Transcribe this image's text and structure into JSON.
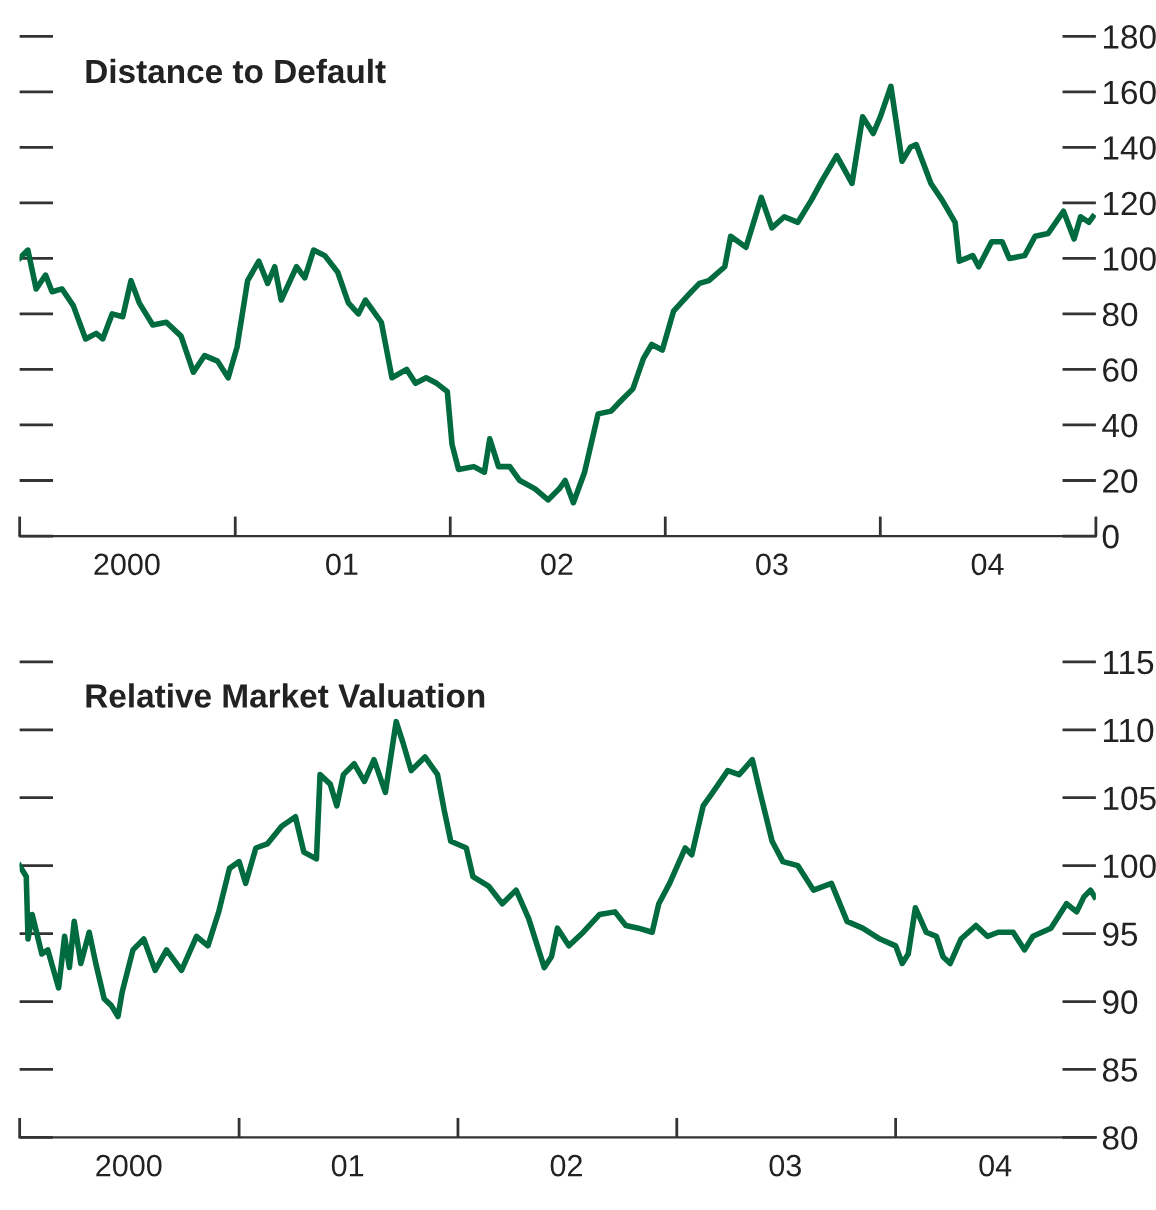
{
  "chart_data": [
    {
      "type": "line",
      "title": "Distance to Default",
      "color": "#006b3f",
      "x": [
        "2000-01-01",
        "2000-01-15",
        "2000-01-29",
        "2000-02-14",
        "2000-02-25",
        "2000-03-13",
        "2000-04-01",
        "2000-04-22",
        "2000-05-10",
        "2000-05-21",
        "2000-06-06",
        "2000-06-24",
        "2000-07-08",
        "2000-07-22",
        "2000-08-14",
        "2000-09-06",
        "2000-10-01",
        "2000-10-22",
        "2000-11-10",
        "2000-12-02",
        "2000-12-20",
        "2001-01-04",
        "2001-01-22",
        "2001-02-10",
        "2001-02-25",
        "2001-03-09",
        "2001-03-20",
        "2001-04-15",
        "2001-04-29",
        "2001-05-14",
        "2001-06-02",
        "2001-06-24",
        "2001-07-12",
        "2001-07-29",
        "2001-08-10",
        "2001-09-06",
        "2001-09-24",
        "2001-10-19",
        "2001-11-03",
        "2001-11-21",
        "2001-12-09",
        "2001-12-27",
        "2002-01-04",
        "2002-01-15",
        "2002-02-10",
        "2002-02-28",
        "2002-03-09",
        "2002-03-24",
        "2002-04-12",
        "2002-04-29",
        "2002-05-25",
        "2002-06-16",
        "2002-07-05",
        "2002-07-15",
        "2002-07-29",
        "2002-08-17",
        "2002-09-09",
        "2002-10-01",
        "2002-10-19",
        "2002-11-07",
        "2002-11-25",
        "2002-12-09",
        "2002-12-27",
        "2003-01-15",
        "2003-02-10",
        "2003-02-28",
        "2003-03-16",
        "2003-04-12",
        "2003-04-22",
        "2003-05-18",
        "2003-06-13",
        "2003-07-01",
        "2003-07-22",
        "2003-08-14",
        "2003-09-06",
        "2003-09-24",
        "2003-10-19",
        "2003-11-14",
        "2003-12-02",
        "2003-12-20",
        "2004-01-01",
        "2004-01-19",
        "2004-02-07",
        "2004-02-21",
        "2004-03-02",
        "2004-03-27",
        "2004-04-15",
        "2004-05-07",
        "2004-05-14",
        "2004-06-06",
        "2004-06-16",
        "2004-07-08",
        "2004-07-26",
        "2004-08-07",
        "2004-09-02",
        "2004-09-20",
        "2004-10-12",
        "2004-11-07",
        "2004-11-25",
        "2004-12-06",
        "2004-12-20",
        "2004-12-27"
      ],
      "values": [
        100,
        103,
        89,
        94,
        88,
        89,
        83,
        71,
        73,
        71,
        80,
        79,
        92,
        84,
        76,
        77,
        72,
        59,
        65,
        63,
        57,
        68,
        92,
        99,
        91,
        97,
        85,
        97,
        93,
        103,
        101,
        95,
        84,
        80,
        85,
        77,
        57,
        60,
        55,
        57,
        55,
        52,
        33,
        24,
        25,
        23,
        35,
        25,
        25,
        20,
        17,
        13,
        17,
        20,
        12,
        23,
        44,
        45,
        49,
        53,
        64,
        69,
        67,
        81,
        87,
        91,
        92,
        97,
        108,
        104,
        122,
        111,
        115,
        113,
        121,
        128,
        137,
        127,
        151,
        145,
        151,
        162,
        135,
        140,
        141,
        127,
        121,
        113,
        99,
        101,
        97,
        106,
        106,
        100,
        101,
        108,
        109,
        117,
        107,
        115,
        113,
        115
      ],
      "xlim": [
        "2000-01-01",
        "2005-01-01"
      ],
      "xticks": [
        {
          "value": "2000-01-01",
          "label": null
        },
        {
          "value": "2000-07-01",
          "label": "2000"
        },
        {
          "value": "2001-01-01",
          "label": null
        },
        {
          "value": "2001-07-01",
          "label": "01"
        },
        {
          "value": "2002-01-01",
          "label": null
        },
        {
          "value": "2002-07-01",
          "label": "02"
        },
        {
          "value": "2003-01-01",
          "label": null
        },
        {
          "value": "2003-07-01",
          "label": "03"
        },
        {
          "value": "2004-01-01",
          "label": null
        },
        {
          "value": "2004-07-01",
          "label": "04"
        },
        {
          "value": "2005-01-01",
          "label": null
        }
      ],
      "ylim": [
        0,
        180
      ],
      "yticks": [
        0,
        20,
        40,
        60,
        80,
        100,
        120,
        140,
        160,
        180
      ],
      "grid": false,
      "legend": false
    },
    {
      "type": "line",
      "title": "Relative Market Valuation",
      "color": "#006b3f",
      "x": [
        "2000-01-01",
        "2000-01-12",
        "2000-01-15",
        "2000-01-22",
        "2000-02-07",
        "2000-02-17",
        "2000-03-06",
        "2000-03-16",
        "2000-03-24",
        "2000-04-01",
        "2000-04-12",
        "2000-04-26",
        "2000-05-07",
        "2000-05-21",
        "2000-06-02",
        "2000-06-13",
        "2000-06-20",
        "2000-07-08",
        "2000-07-26",
        "2000-08-14",
        "2000-09-02",
        "2000-09-27",
        "2000-10-22",
        "2000-11-10",
        "2000-11-28",
        "2000-12-16",
        "2001-01-01",
        "2001-01-12",
        "2001-01-29",
        "2001-02-17",
        "2001-03-13",
        "2001-04-05",
        "2001-04-19",
        "2001-05-10",
        "2001-05-16",
        "2001-06-02",
        "2001-06-13",
        "2001-06-24",
        "2001-07-12",
        "2001-07-29",
        "2001-08-14",
        "2001-09-02",
        "2001-09-20",
        "2001-10-01",
        "2001-10-15",
        "2001-11-07",
        "2001-11-28",
        "2001-12-09",
        "2001-12-20",
        "2002-01-15",
        "2002-01-26",
        "2002-02-21",
        "2002-03-16",
        "2002-04-08",
        "2002-04-29",
        "2002-05-25",
        "2002-06-06",
        "2002-06-16",
        "2002-07-05",
        "2002-07-29",
        "2002-08-25",
        "2002-09-20",
        "2002-10-08",
        "2002-10-29",
        "2002-11-21",
        "2002-12-02",
        "2002-12-20",
        "2003-01-15",
        "2003-01-26",
        "2003-02-14",
        "2003-03-02",
        "2003-03-27",
        "2003-04-15",
        "2003-05-07",
        "2003-05-21",
        "2003-06-09",
        "2003-06-27",
        "2003-07-22",
        "2003-08-17",
        "2003-09-16",
        "2003-10-12",
        "2003-11-07",
        "2003-12-06",
        "2004-01-01",
        "2004-01-12",
        "2004-01-22",
        "2004-02-03",
        "2004-02-21",
        "2004-03-09",
        "2004-03-20",
        "2004-04-01",
        "2004-04-19",
        "2004-05-14",
        "2004-06-02",
        "2004-06-20",
        "2004-07-15",
        "2004-08-03",
        "2004-08-17",
        "2004-09-16",
        "2004-10-12",
        "2004-10-29",
        "2004-11-10",
        "2004-11-21",
        "2004-11-28"
      ],
      "values": [
        100,
        99.2,
        94.6,
        96.4,
        93.5,
        93.8,
        91,
        94.8,
        92.5,
        95.9,
        92.8,
        95.1,
        92.8,
        90.2,
        89.7,
        88.9,
        90.7,
        93.8,
        94.6,
        92.3,
        93.8,
        92.3,
        94.8,
        94.1,
        96.6,
        99.8,
        100.3,
        98.7,
        101.3,
        101.6,
        102.9,
        103.6,
        101,
        100.5,
        106.7,
        106,
        104.4,
        106.7,
        107.5,
        106.2,
        107.8,
        105.4,
        110.6,
        109.1,
        107,
        108,
        106.7,
        104.1,
        101.8,
        101.3,
        99.2,
        98.5,
        97.2,
        98.2,
        96.1,
        92.5,
        93.3,
        95.4,
        94.1,
        95.1,
        96.4,
        96.6,
        95.6,
        95.4,
        95.1,
        97.2,
        98.7,
        101.3,
        100.8,
        104.4,
        105.4,
        107,
        106.7,
        107.8,
        105.2,
        101.8,
        100.3,
        100,
        98.2,
        98.7,
        95.9,
        95.4,
        94.6,
        94.1,
        92.8,
        93.5,
        96.9,
        95.1,
        94.8,
        93.3,
        92.8,
        94.6,
        95.6,
        94.8,
        95.1,
        95.1,
        93.8,
        94.8,
        95.4,
        97.2,
        96.6,
        97.7,
        98.2,
        97.7
      ],
      "xlim": [
        "2000-01-01",
        "2004-11-30"
      ],
      "xticks": [
        {
          "value": "2000-01-01",
          "label": null
        },
        {
          "value": "2000-07-01",
          "label": "2000"
        },
        {
          "value": "2001-01-01",
          "label": null
        },
        {
          "value": "2001-07-01",
          "label": "01"
        },
        {
          "value": "2002-01-01",
          "label": null
        },
        {
          "value": "2002-07-01",
          "label": "02"
        },
        {
          "value": "2003-01-01",
          "label": null
        },
        {
          "value": "2003-07-01",
          "label": "03"
        },
        {
          "value": "2004-01-01",
          "label": null
        },
        {
          "value": "2004-06-15",
          "label": "04"
        }
      ],
      "ylim": [
        80,
        115
      ],
      "yticks": [
        80,
        85,
        90,
        95,
        100,
        105,
        110,
        115
      ],
      "grid": false,
      "legend": false
    }
  ]
}
